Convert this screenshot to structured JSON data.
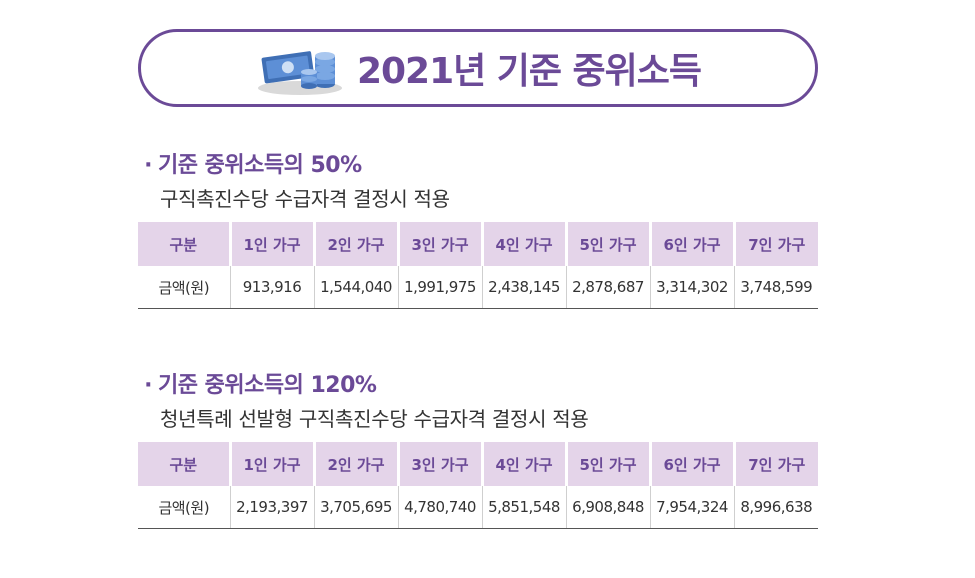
{
  "title": "2021년 기준 중위소득",
  "icon": "money-coins-icon",
  "colors": {
    "accent": "#6b4a97",
    "header_bg": "#e4d4e9"
  },
  "sections": [
    {
      "bullet": "·",
      "heading": "기준 중위소득의 50%",
      "subtitle": "구직촉진수당 수급자격 결정시 적용",
      "table": {
        "headers": [
          "구분",
          "1인 가구",
          "2인 가구",
          "3인 가구",
          "4인 가구",
          "5인 가구",
          "6인 가구",
          "7인 가구"
        ],
        "row_label": "금액(원)",
        "values": [
          "913,916",
          "1,544,040",
          "1,991,975",
          "2,438,145",
          "2,878,687",
          "3,314,302",
          "3,748,599"
        ]
      }
    },
    {
      "bullet": "·",
      "heading": "기준 중위소득의 120%",
      "subtitle": "청년특례 선발형 구직촉진수당 수급자격 결정시 적용",
      "table": {
        "headers": [
          "구분",
          "1인 가구",
          "2인 가구",
          "3인 가구",
          "4인 가구",
          "5인 가구",
          "6인 가구",
          "7인 가구"
        ],
        "row_label": "금액(원)",
        "values": [
          "2,193,397",
          "3,705,695",
          "4,780,740",
          "5,851,548",
          "6,908,848",
          "7,954,324",
          "8,996,638"
        ]
      }
    }
  ]
}
